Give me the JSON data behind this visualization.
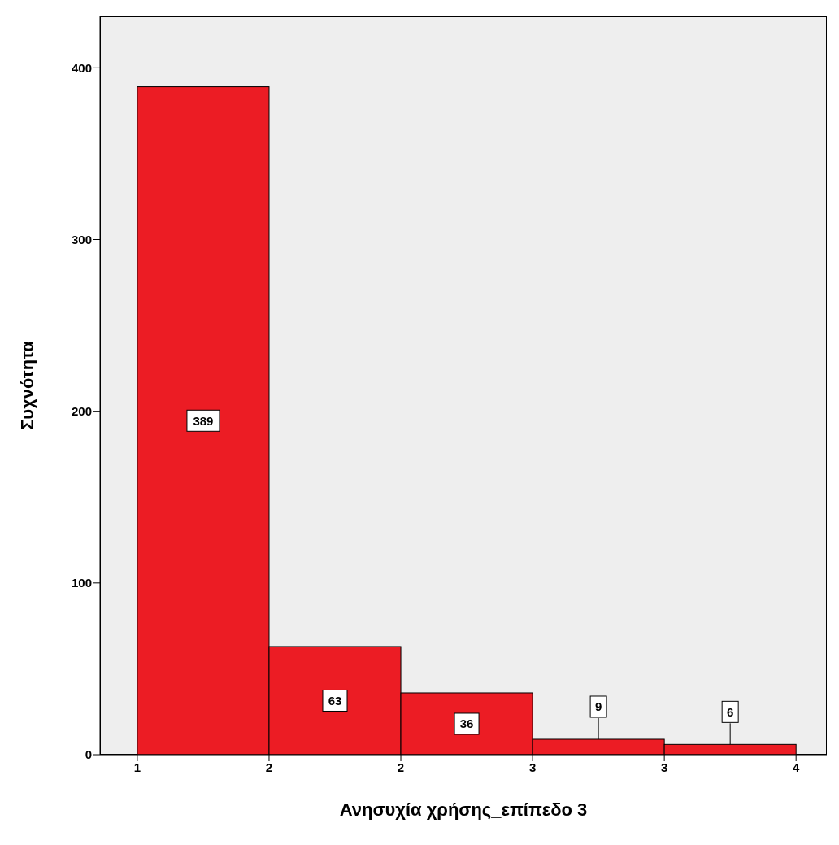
{
  "chart_data": {
    "type": "histogram",
    "xlabel": "Ανησυχία χρήσης_επίπεδο 3",
    "ylabel": "Συχνότητα",
    "bins": [
      1,
      1.6,
      2.2,
      2.8,
      3.4,
      4
    ],
    "values": [
      389,
      63,
      36,
      9,
      6
    ],
    "color": "#ec1c24",
    "xlim": [
      0.83,
      4.14
    ],
    "xticks": [
      1,
      {
        "value": 1.6,
        "label": "2"
      },
      {
        "value": 2.2,
        "label": "2"
      },
      {
        "value": 2.8,
        "label": "3"
      },
      {
        "value": 3.4,
        "label": "3"
      },
      4
    ],
    "ylim": [
      0,
      430
    ],
    "yticks": [
      0,
      100,
      200,
      300,
      400
    ],
    "data_labels": true
  }
}
